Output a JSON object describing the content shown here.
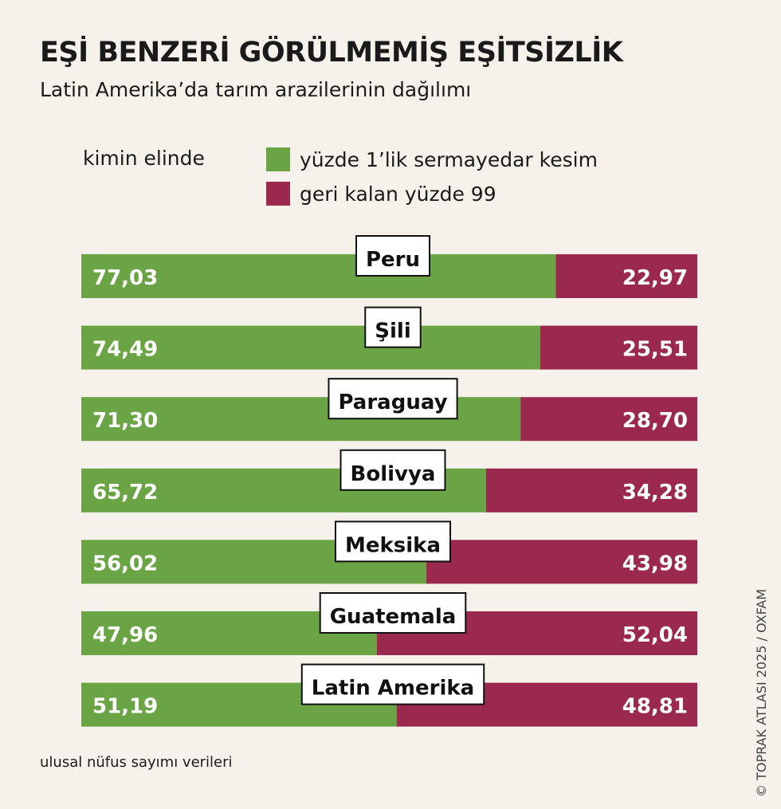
{
  "title": "EŞİ BENZERİ GÖRÜLMEMİŞ EŞİTSİZLİK",
  "subtitle": "Latin Amerika’da tarım arazilerinin dağılımı",
  "legend_label": "kimin elinde",
  "source": "ulusal nüfus sayımı verileri",
  "credit": "© TOPRAK ATLASI 2025 / OXFAM",
  "colors": {
    "top1": "#6aa444",
    "rest99": "#9b284d",
    "background": "#f6f2eb"
  },
  "chart_data": {
    "type": "bar",
    "stacked": true,
    "orientation": "horizontal",
    "title": "EŞİ BENZERİ GÖRÜLMEMİŞ EŞİTSİZLİK",
    "subtitle": "Latin Amerika’da tarım arazilerinin dağılımı",
    "legend_placement": "top",
    "xlim": [
      0,
      100
    ],
    "categories": [
      "Peru",
      "Şili",
      "Paraguay",
      "Bolivya",
      "Meksika",
      "Guatemala",
      "Latin Amerika"
    ],
    "series": [
      {
        "name": "yüzde 1’lik sermayedar kesim",
        "values": [
          "77,03",
          "74,49",
          "71,30",
          "65,72",
          "56,02",
          "47,96",
          "51,19"
        ]
      },
      {
        "name": "geri kalan yüzde 99",
        "values": [
          "22,97",
          "25,51",
          "28,70",
          "34,28",
          "43,98",
          "52,04",
          "48,81"
        ]
      }
    ]
  }
}
